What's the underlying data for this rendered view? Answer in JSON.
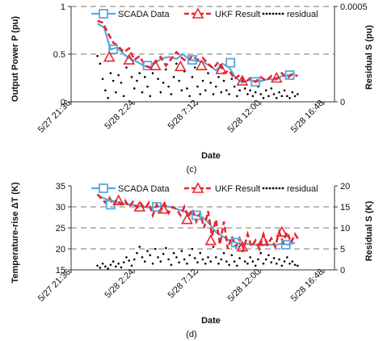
{
  "chart_data": [
    {
      "type": "line",
      "panel_label": "(c)",
      "xlabel": "Date",
      "ylabel": "Output Power P (pu)",
      "y2label": "Residual S (pu)",
      "x_ticks": [
        "5/27 21:36",
        "5/28 2:24",
        "5/28 7:12",
        "5/28 12:00",
        "5/28 16:48"
      ],
      "y_ticks": [
        "0",
        "0.5",
        "1"
      ],
      "y2_ticks": [
        "0",
        "0.0005"
      ],
      "ylim": [
        0,
        1.0
      ],
      "y2lim": [
        0,
        0.0005
      ],
      "legend_position": "top",
      "legend": [
        "SCADA Data",
        "UKF Result",
        "residual"
      ],
      "colors": {
        "scada": "#5aa7e0",
        "ukf": "#e8262b",
        "residual": "#000000"
      },
      "series": [
        {
          "name": "SCADA Data",
          "axis": "left",
          "x": [
            2.0,
            2.5,
            3.0,
            3.5,
            4.0,
            4.5,
            5.0,
            5.5,
            6.0,
            6.5,
            7.0,
            7.5,
            8.0,
            8.5,
            9.0,
            9.5,
            10.0,
            10.5,
            11.0,
            11.5,
            12.0,
            12.5,
            13.0,
            13.5,
            14.0,
            14.5,
            15.0,
            15.5,
            16.0,
            16.5,
            17.0
          ],
          "y": [
            0.82,
            0.78,
            0.55,
            0.57,
            0.5,
            0.45,
            0.42,
            0.38,
            0.36,
            0.42,
            0.46,
            0.47,
            0.45,
            0.5,
            0.44,
            0.43,
            0.42,
            0.38,
            0.33,
            0.4,
            0.36,
            0.25,
            0.2,
            0.23,
            0.21,
            0.22,
            0.24,
            0.23,
            0.27,
            0.28,
            0.3
          ],
          "markers": [
            [
              3.2,
              0.55
            ],
            [
              5.8,
              0.38
            ],
            [
              9.2,
              0.44
            ],
            [
              12.1,
              0.41
            ],
            [
              14.0,
              0.21
            ],
            [
              16.6,
              0.28
            ]
          ]
        },
        {
          "name": "UKF Result",
          "axis": "left",
          "x": [
            2.0,
            2.4,
            2.8,
            3.2,
            3.6,
            4.0,
            4.4,
            4.8,
            5.2,
            5.6,
            6.0,
            6.4,
            6.8,
            7.2,
            7.6,
            8.0,
            8.4,
            8.8,
            9.2,
            9.6,
            10.0,
            10.4,
            10.8,
            11.2,
            11.6,
            12.0,
            12.4,
            12.8,
            13.2,
            13.6,
            14.0,
            14.4,
            14.8,
            15.2,
            15.6,
            16.0,
            16.4,
            16.8,
            17.2
          ],
          "y": [
            0.85,
            0.83,
            0.72,
            0.62,
            0.58,
            0.52,
            0.56,
            0.44,
            0.48,
            0.38,
            0.36,
            0.42,
            0.47,
            0.38,
            0.45,
            0.52,
            0.46,
            0.42,
            0.48,
            0.44,
            0.46,
            0.4,
            0.35,
            0.42,
            0.3,
            0.33,
            0.24,
            0.28,
            0.2,
            0.25,
            0.21,
            0.26,
            0.22,
            0.27,
            0.24,
            0.3,
            0.25,
            0.29,
            0.27
          ],
          "markers": [
            [
              2.9,
              0.47
            ],
            [
              4.4,
              0.44
            ],
            [
              6.4,
              0.38
            ],
            [
              8.3,
              0.37
            ],
            [
              9.9,
              0.38
            ],
            [
              11.4,
              0.34
            ],
            [
              13.0,
              0.22
            ],
            [
              15.6,
              0.25
            ]
          ]
        },
        {
          "name": "residual",
          "axis": "right",
          "x": [
            2.0,
            2.2,
            2.4,
            2.6,
            2.8,
            3.0,
            3.2,
            3.4,
            3.6,
            3.8,
            4.0,
            4.2,
            4.4,
            4.6,
            4.8,
            5.0,
            5.2,
            5.4,
            5.6,
            5.8,
            6.0,
            6.2,
            6.4,
            6.6,
            6.8,
            7.0,
            7.2,
            7.4,
            7.6,
            7.8,
            8.0,
            8.2,
            8.4,
            8.6,
            8.8,
            9.0,
            9.2,
            9.4,
            9.6,
            9.8,
            10.0,
            10.2,
            10.4,
            10.6,
            10.8,
            11.0,
            11.2,
            11.4,
            11.6,
            11.8,
            12.0,
            12.2,
            12.4,
            12.6,
            12.8,
            13.0,
            13.2,
            13.4,
            13.6,
            13.8,
            14.0,
            14.2,
            14.4,
            14.6,
            14.8,
            15.0,
            15.2,
            15.4,
            15.6,
            15.8,
            16.0,
            16.2,
            16.4,
            16.6,
            16.8,
            17.0,
            17.2
          ],
          "y": [
            0.00024,
            0.0002,
            0.00012,
            6e-05,
            2e-05,
            0.00015,
            0.00011,
            5e-05,
            0.00014,
            0.0001,
            3e-05,
            0.00018,
            0.00023,
            0.00013,
            7e-05,
            0.00011,
            0.00015,
            5e-05,
            0.00013,
            8e-05,
            3e-05,
            0.00015,
            0.00021,
            0.00012,
            5e-05,
            0.0001,
            0.00017,
            8e-05,
            4e-05,
            0.00013,
            0.0002,
            0.00011,
            6e-05,
            0.00016,
            7e-05,
            3e-05,
            0.00013,
            0.00018,
            8e-05,
            4e-05,
            0.00011,
            6e-05,
            0.00015,
            0.0001,
            4e-05,
            8e-05,
            0.00013,
            5e-05,
            0.00011,
            6e-05,
            4e-05,
            0.00012,
            8e-05,
            3e-05,
            6e-05,
            0.00011,
            7e-05,
            4e-05,
            6e-05,
            3e-05,
            5e-05,
            8e-05,
            4e-05,
            2e-05,
            6e-05,
            3e-05,
            7e-05,
            4e-05,
            2e-05,
            5e-05,
            3e-05,
            6e-05,
            3e-05,
            2e-05,
            5e-05,
            3e-05,
            4e-05
          ]
        }
      ]
    },
    {
      "type": "line",
      "panel_label": "(d)",
      "xlabel": "Date",
      "ylabel": "Temperature-rise ΔT (K)",
      "y2label": "Residual S (K)",
      "x_ticks": [
        "5/27 21:36",
        "5/28 2:24",
        "5/28 7:12",
        "5/28 12:00",
        "5/28 16:48"
      ],
      "y_ticks": [
        "15",
        "20",
        "25",
        "30",
        "35"
      ],
      "y2_ticks": [
        "0",
        "5",
        "10",
        "15",
        "20"
      ],
      "ylim": [
        15,
        35
      ],
      "y2lim": [
        0,
        20
      ],
      "legend_position": "top",
      "legend": [
        "SCADA Data",
        "UKF Result",
        "residual"
      ],
      "colors": {
        "scada": "#5aa7e0",
        "ukf": "#e8262b",
        "residual": "#000000"
      },
      "series": [
        {
          "name": "SCADA Data",
          "axis": "left",
          "x": [
            2.0,
            2.5,
            3.0,
            3.5,
            4.0,
            4.5,
            5.0,
            5.5,
            6.0,
            6.5,
            7.0,
            7.5,
            8.0,
            8.5,
            9.0,
            9.5,
            10.0,
            10.5,
            11.0,
            11.5,
            12.0,
            12.5,
            13.0,
            13.5,
            14.0,
            14.5,
            15.0,
            15.5,
            16.0,
            16.5,
            17.0
          ],
          "y": [
            32.8,
            32.0,
            31.5,
            31.0,
            30.8,
            30.5,
            30.3,
            30.0,
            29.8,
            30.0,
            30.2,
            30.0,
            29.5,
            29.0,
            28.5,
            28.0,
            27.5,
            26.0,
            24.0,
            23.0,
            22.0,
            21.5,
            21.0,
            21.2,
            21.0,
            20.8,
            21.0,
            21.0,
            21.2,
            21.0,
            21.5
          ],
          "markers": [
            [
              3.0,
              30.5
            ],
            [
              6.5,
              30.0
            ],
            [
              9.5,
              28.0
            ],
            [
              12.5,
              21.5
            ],
            [
              16.3,
              21.0
            ]
          ]
        },
        {
          "name": "UKF Result",
          "axis": "left",
          "x": [
            2.0,
            2.3,
            2.6,
            2.9,
            3.2,
            3.5,
            3.8,
            4.1,
            4.4,
            4.7,
            5.0,
            5.3,
            5.6,
            5.9,
            6.2,
            6.5,
            6.8,
            7.1,
            7.4,
            7.7,
            8.0,
            8.3,
            8.6,
            8.9,
            9.2,
            9.5,
            9.8,
            10.1,
            10.4,
            10.7,
            11.0,
            11.3,
            11.6,
            11.9,
            12.2,
            12.5,
            12.8,
            13.1,
            13.4,
            13.7,
            14.0,
            14.3,
            14.6,
            14.9,
            15.2,
            15.5,
            15.8,
            16.1,
            16.4,
            16.7,
            17.0,
            17.3
          ],
          "y": [
            33.0,
            32.0,
            31.0,
            32.2,
            30.5,
            31.8,
            30.6,
            31.5,
            30.0,
            31.2,
            29.8,
            30.8,
            29.5,
            31.0,
            28.0,
            30.5,
            29.0,
            30.8,
            28.5,
            30.0,
            29.5,
            28.0,
            30.0,
            27.5,
            29.5,
            26.5,
            28.5,
            25.0,
            29.0,
            23.0,
            27.0,
            21.0,
            26.5,
            20.0,
            23.0,
            20.5,
            22.5,
            20.0,
            23.5,
            20.5,
            22.0,
            20.0,
            23.5,
            21.0,
            22.5,
            20.5,
            24.0,
            21.5,
            24.0,
            21.5,
            23.5,
            22.0
          ],
          "markers": [
            [
              3.6,
              31.5
            ],
            [
              5.2,
              30.0
            ],
            [
              7.0,
              29.5
            ],
            [
              8.8,
              27.0
            ],
            [
              10.6,
              22.0
            ],
            [
              13.0,
              20.5
            ],
            [
              14.6,
              22.0
            ],
            [
              16.0,
              24.0
            ]
          ]
        },
        {
          "name": "residual",
          "axis": "right",
          "x": [
            2.0,
            2.2,
            2.4,
            2.6,
            2.8,
            3.0,
            3.2,
            3.4,
            3.6,
            3.8,
            4.0,
            4.2,
            4.4,
            4.6,
            4.8,
            5.0,
            5.2,
            5.4,
            5.6,
            5.8,
            6.0,
            6.2,
            6.4,
            6.6,
            6.8,
            7.0,
            7.2,
            7.4,
            7.6,
            7.8,
            8.0,
            8.2,
            8.4,
            8.6,
            8.8,
            9.0,
            9.2,
            9.4,
            9.6,
            9.8,
            10.0,
            10.2,
            10.4,
            10.6,
            10.8,
            11.0,
            11.2,
            11.4,
            11.6,
            11.8,
            12.0,
            12.2,
            12.4,
            12.6,
            12.8,
            13.0,
            13.2,
            13.4,
            13.6,
            13.8,
            14.0,
            14.2,
            14.4,
            14.6,
            14.8,
            15.0,
            15.2,
            15.4,
            15.6,
            15.8,
            16.0,
            16.2,
            16.4,
            16.6,
            16.8,
            17.0,
            17.2
          ],
          "y": [
            1.0,
            0.5,
            1.5,
            0.8,
            0.3,
            1.2,
            2.0,
            0.8,
            1.5,
            0.6,
            1.8,
            3.0,
            2.2,
            1.0,
            2.5,
            4.0,
            5.5,
            3.0,
            2.0,
            4.5,
            3.5,
            1.5,
            5.0,
            3.0,
            2.0,
            3.8,
            5.2,
            2.5,
            1.2,
            4.0,
            3.0,
            1.8,
            4.5,
            2.5,
            1.5,
            3.5,
            5.0,
            2.8,
            1.8,
            4.0,
            2.5,
            1.5,
            3.0,
            2.0,
            5.5,
            3.0,
            1.5,
            2.5,
            4.0,
            2.0,
            1.2,
            3.5,
            2.0,
            1.0,
            2.8,
            4.5,
            2.0,
            1.5,
            3.0,
            2.0,
            1.0,
            2.5,
            4.0,
            1.5,
            2.5,
            3.5,
            1.8,
            2.8,
            1.5,
            2.5,
            1.0,
            2.0,
            3.0,
            1.5,
            2.0,
            1.2,
            1.0
          ]
        }
      ]
    }
  ]
}
